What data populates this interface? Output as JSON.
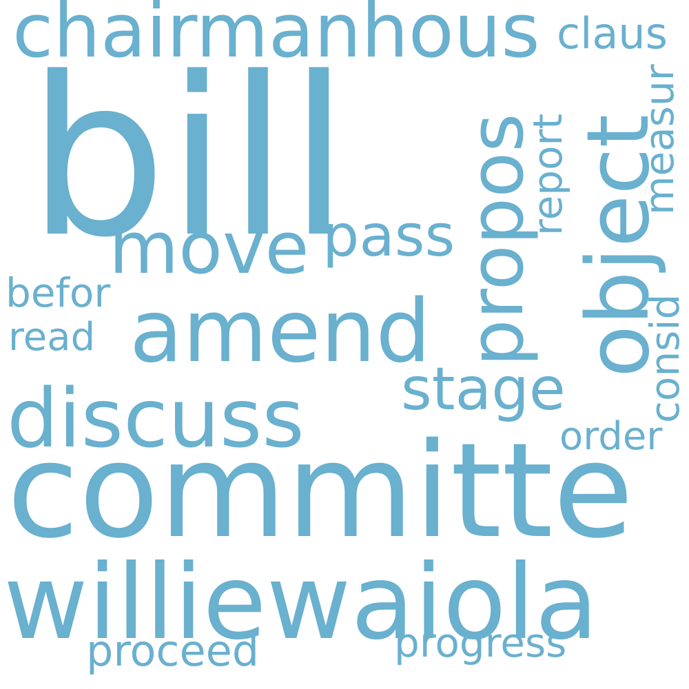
{
  "cloud": {
    "color": "#6ab0cf",
    "background": "#ffffff",
    "words": {
      "bill": "bill",
      "committe": "committe",
      "williewaiola": "williewaiola",
      "chairmanhous": "chairmanhous",
      "discuss": "discuss",
      "amend": "amend",
      "move": "move",
      "pass": "pass",
      "stage": "stage",
      "claus": "claus",
      "befor": "befor",
      "read": "read",
      "order": "order",
      "proceed": "proceed",
      "progress": "progress",
      "propos": "propos",
      "object": "object",
      "report": "report",
      "measur": "measur",
      "consid": "consid"
    }
  }
}
